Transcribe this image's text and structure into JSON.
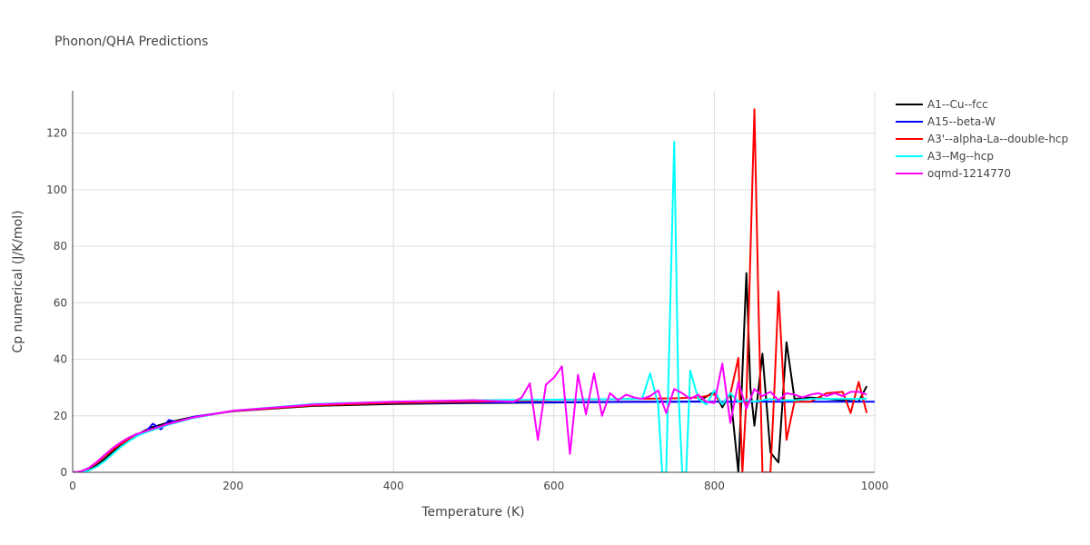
{
  "chart_data": {
    "type": "line",
    "title": "Phonon/QHA Predictions",
    "xlabel": "Temperature (K)",
    "ylabel": "Cp numerical (J/K/mol)",
    "xlim": [
      0,
      1000
    ],
    "ylim": [
      0,
      135
    ],
    "xticks": [
      0,
      200,
      400,
      600,
      800,
      1000
    ],
    "yticks": [
      0,
      20,
      40,
      60,
      80,
      100,
      120
    ],
    "grid": true,
    "legend_position": "top-right",
    "series": [
      {
        "name": "A1--Cu--fcc",
        "color": "#000000",
        "x": [
          0,
          10,
          20,
          30,
          40,
          50,
          60,
          70,
          80,
          90,
          100,
          120,
          150,
          200,
          300,
          400,
          500,
          600,
          700,
          750,
          780,
          800,
          810,
          820,
          830,
          840,
          845,
          850,
          860,
          870,
          880,
          890,
          900,
          920,
          940,
          960,
          980,
          990
        ],
        "y": [
          0,
          0.2,
          0.8,
          2.5,
          4.8,
          7.2,
          9.6,
          11.6,
          13.3,
          14.8,
          16.0,
          17.7,
          19.6,
          21.6,
          23.5,
          24.2,
          24.5,
          24.7,
          25.0,
          25.0,
          25.1,
          28.5,
          23.0,
          28.0,
          0.0,
          70.5,
          30.0,
          16.5,
          42.0,
          7.0,
          3.5,
          46.0,
          26.0,
          26.5,
          26.0,
          25.5,
          25.0,
          30.5
        ]
      },
      {
        "name": "A15--beta-W",
        "color": "#0000ff",
        "x": [
          0,
          10,
          20,
          30,
          40,
          50,
          60,
          70,
          80,
          90,
          100,
          110,
          120,
          130,
          150,
          200,
          300,
          400,
          500,
          600,
          700,
          800,
          900,
          1000
        ],
        "y": [
          0,
          0.3,
          1.5,
          3.5,
          6.0,
          8.5,
          10.6,
          12.2,
          13.6,
          14.0,
          17.2,
          15.2,
          18.5,
          17.8,
          19.6,
          21.7,
          23.8,
          24.5,
          24.7,
          24.8,
          24.9,
          25.0,
          25.0,
          25.0
        ]
      },
      {
        "name": "A3'--alpha-La--double-hcp",
        "color": "#ff0000",
        "x": [
          0,
          10,
          20,
          30,
          40,
          50,
          60,
          70,
          80,
          90,
          100,
          120,
          150,
          200,
          300,
          400,
          500,
          600,
          700,
          750,
          780,
          790,
          800,
          810,
          820,
          830,
          835,
          840,
          850,
          855,
          860,
          870,
          875,
          880,
          890,
          900,
          920,
          940,
          960,
          970,
          980,
          990
        ],
        "y": [
          0,
          0.3,
          1.4,
          3.4,
          5.8,
          8.0,
          10.0,
          11.6,
          13.0,
          14.2,
          15.2,
          17.2,
          19.3,
          21.7,
          23.7,
          24.6,
          25.0,
          25.6,
          26.0,
          26.2,
          26.5,
          27.0,
          27.6,
          24.2,
          27.7,
          40.5,
          0.0,
          26.0,
          128.5,
          60.0,
          0.0,
          0.0,
          30.0,
          64.0,
          11.5,
          25.0,
          25.0,
          28.0,
          28.5,
          21.0,
          32.0,
          21.0
        ]
      },
      {
        "name": "A3--Mg--hcp",
        "color": "#00ffff",
        "x": [
          0,
          10,
          20,
          30,
          40,
          50,
          60,
          70,
          80,
          90,
          100,
          120,
          150,
          200,
          300,
          400,
          500,
          600,
          700,
          710,
          720,
          730,
          735,
          740,
          750,
          755,
          760,
          765,
          770,
          780,
          790,
          800,
          810,
          820,
          830,
          840,
          850,
          860,
          870,
          880,
          900,
          920,
          940,
          960,
          980,
          990
        ],
        "y": [
          0,
          0.1,
          0.6,
          2.0,
          4.0,
          6.5,
          9.0,
          11.0,
          12.8,
          14.0,
          15.0,
          16.9,
          19.2,
          21.8,
          24.2,
          25.0,
          25.5,
          25.7,
          26.0,
          26.0,
          35.0,
          24.0,
          0.0,
          0.0,
          117.0,
          30.0,
          0.0,
          0.0,
          36.0,
          26.0,
          24.0,
          29.0,
          24.0,
          28.0,
          25.0,
          25.5,
          25.0,
          25.5,
          26.0,
          25.5,
          25.5,
          26.0,
          26.0,
          26.0,
          26.0,
          26.0
        ]
      },
      {
        "name": "oqmd-1214770",
        "color": "#ff00ff",
        "x": [
          0,
          10,
          20,
          30,
          40,
          50,
          60,
          70,
          80,
          90,
          100,
          120,
          150,
          200,
          300,
          400,
          500,
          550,
          560,
          570,
          580,
          590,
          600,
          610,
          620,
          630,
          640,
          650,
          660,
          670,
          680,
          690,
          700,
          710,
          720,
          730,
          740,
          750,
          760,
          770,
          780,
          790,
          800,
          810,
          820,
          830,
          840,
          850,
          860,
          870,
          880,
          890,
          900,
          910,
          920,
          930,
          940,
          950,
          960,
          970,
          980,
          990
        ],
        "y": [
          0,
          0.3,
          1.5,
          3.7,
          6.2,
          8.6,
          10.6,
          12.3,
          13.5,
          14.5,
          15.4,
          17.2,
          19.4,
          21.8,
          24.0,
          25.0,
          25.5,
          25.0,
          26.5,
          31.5,
          11.5,
          31.0,
          33.5,
          37.5,
          6.5,
          34.5,
          20.5,
          35.0,
          20.0,
          28.0,
          25.5,
          27.5,
          26.5,
          26.0,
          27.0,
          29.0,
          21.0,
          29.5,
          28.0,
          26.0,
          27.5,
          25.0,
          24.5,
          38.5,
          17.5,
          32.0,
          22.5,
          29.5,
          27.0,
          28.5,
          25.5,
          28.0,
          27.5,
          26.5,
          27.5,
          28.0,
          27.0,
          28.0,
          27.0,
          28.5,
          28.5,
          27.5
        ]
      }
    ]
  }
}
